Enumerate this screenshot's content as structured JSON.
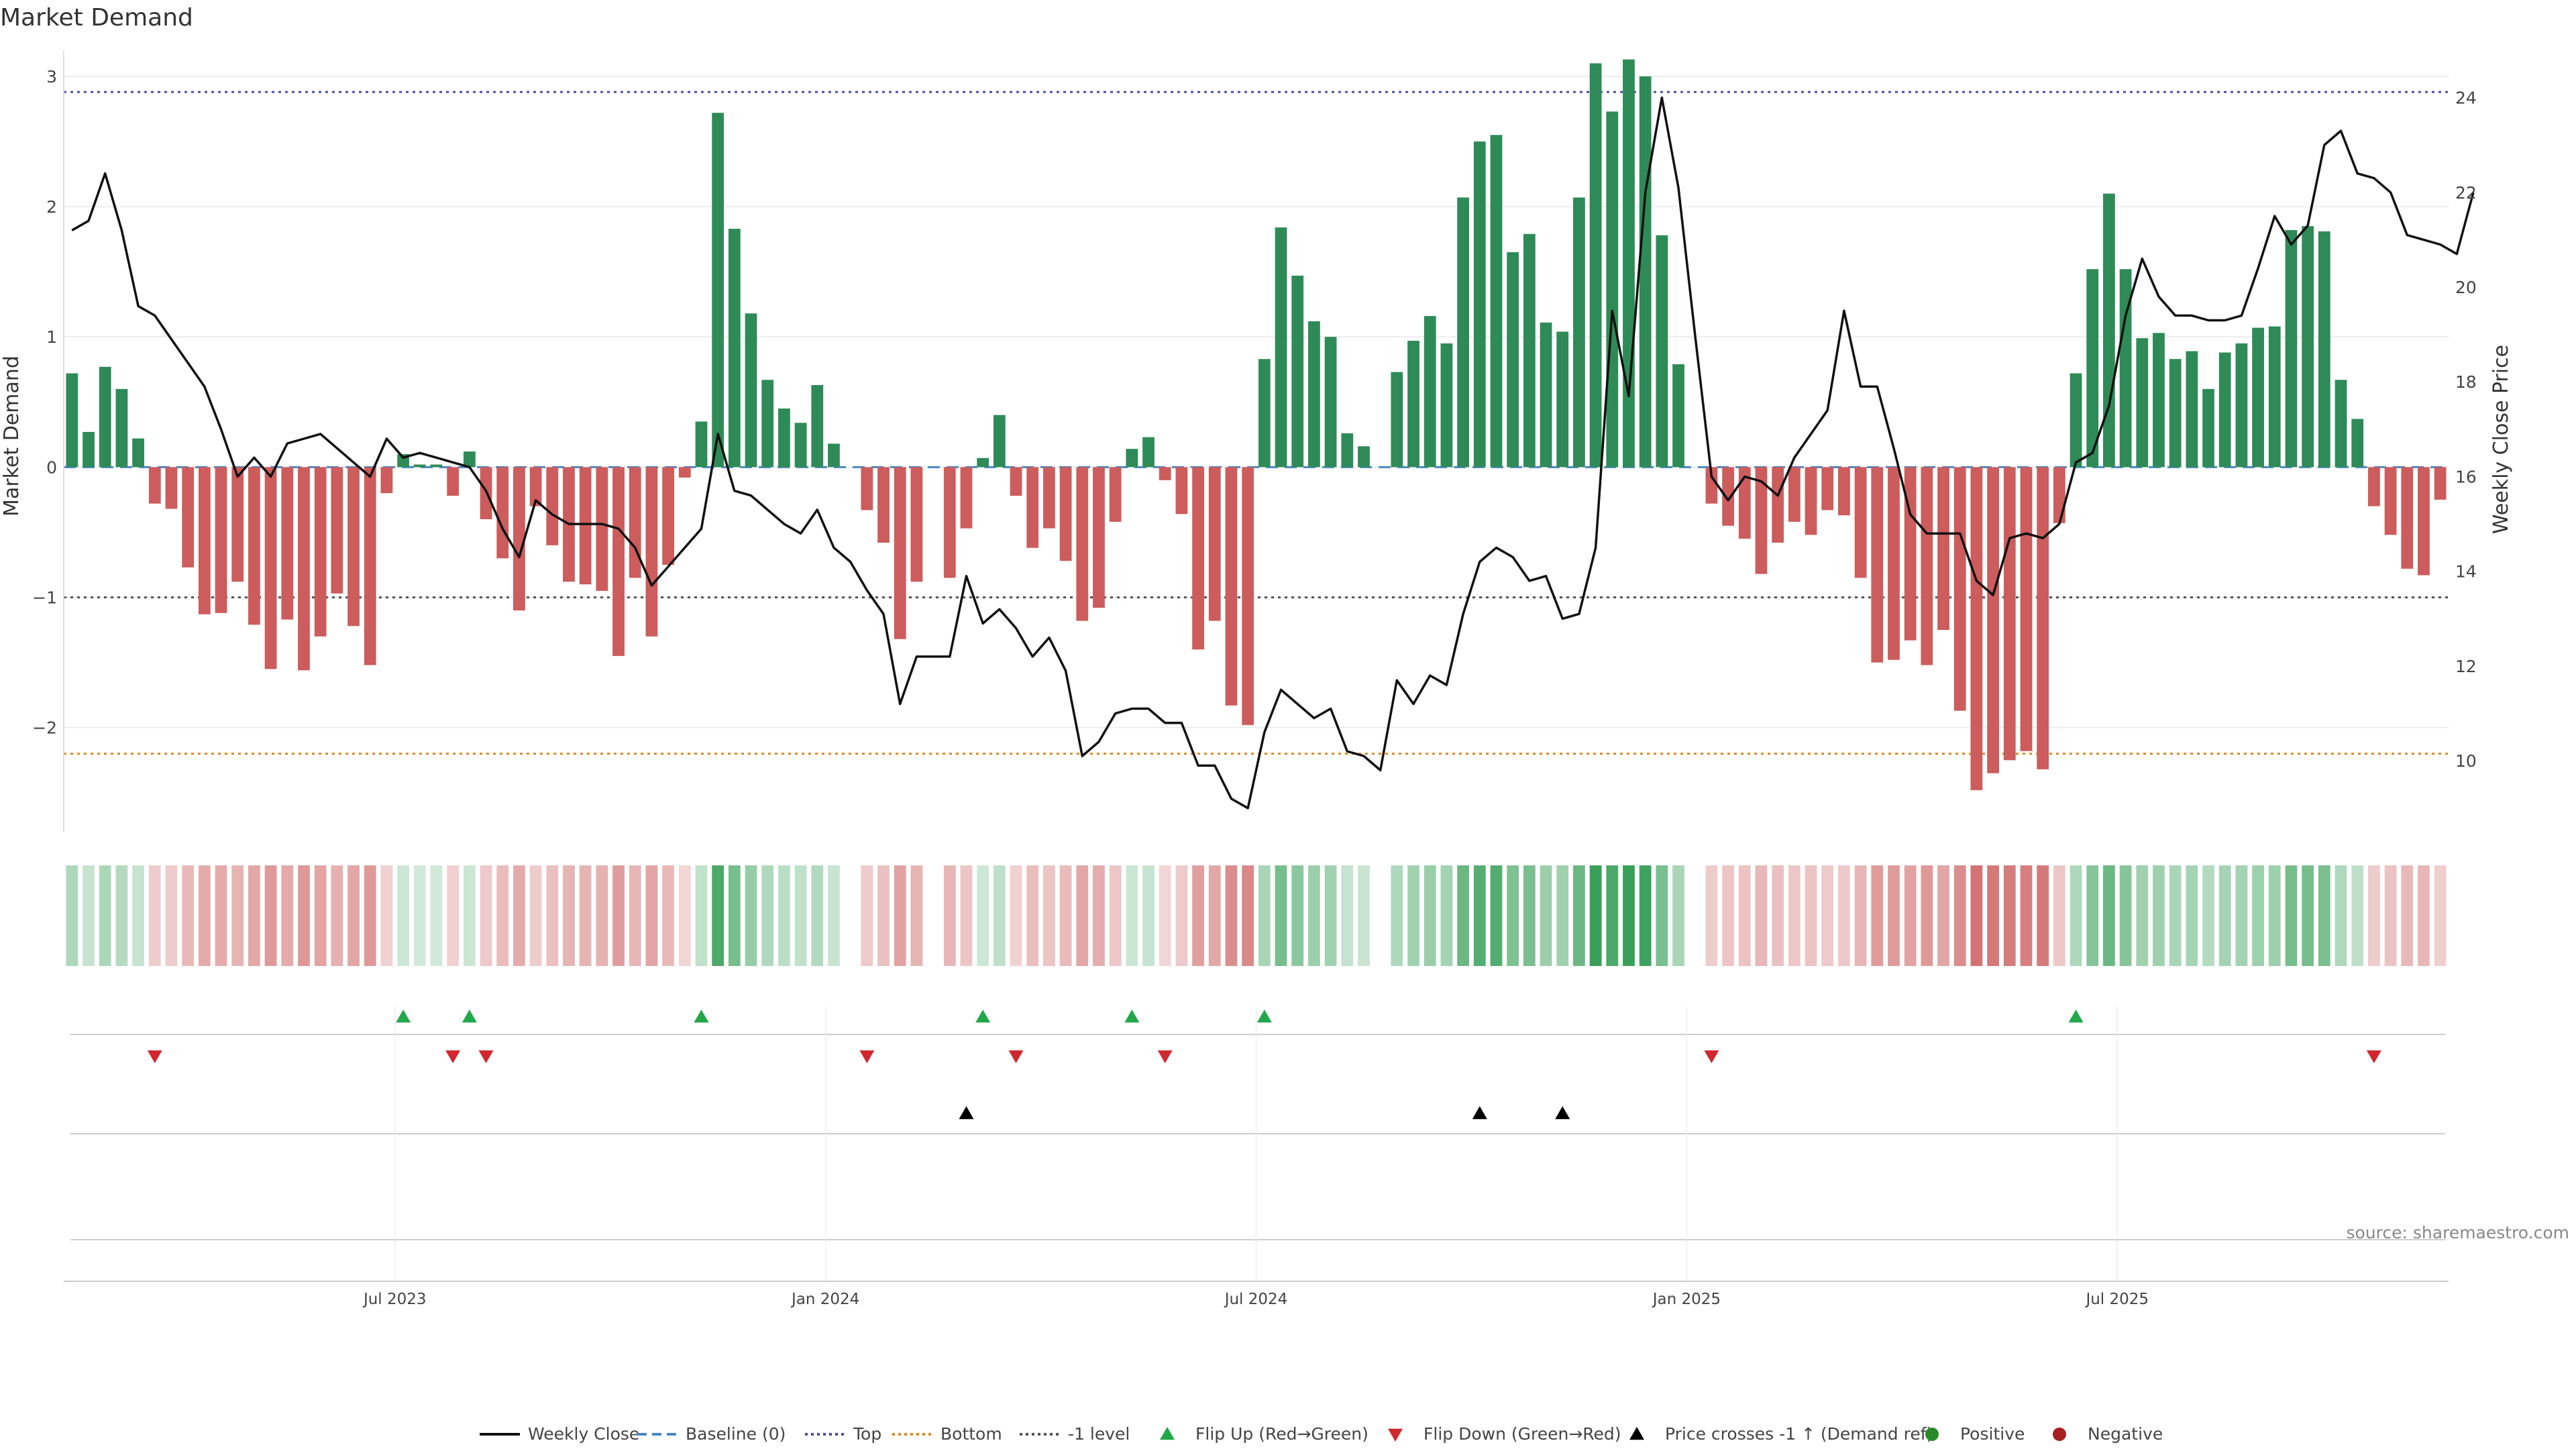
{
  "chart_data": {
    "type": "bar",
    "title": "Market Demand",
    "ylabel_left": "Market Demand",
    "ylabel_right": "Weekly Close Price",
    "source": "source: sharemaestro.com",
    "y_left": {
      "min": -2.8,
      "max": 3.2,
      "ticks": [
        3,
        2,
        1,
        0,
        -1,
        -2
      ],
      "tick_labels": [
        "3",
        "2",
        "1",
        "0",
        "−1",
        "−2"
      ]
    },
    "y_right": {
      "min": 8.5,
      "max": 25.0,
      "ticks": [
        24,
        22,
        20,
        18,
        16,
        14,
        12,
        10
      ],
      "tick_labels": [
        "24",
        "22",
        "20",
        "18",
        "16",
        "14",
        "12",
        "10"
      ]
    },
    "x_ticks": [
      {
        "label": "Jul 2023",
        "week": 20
      },
      {
        "label": "Jan 2024",
        "week": 46
      },
      {
        "label": "Jul 2024",
        "week": 72
      },
      {
        "label": "Jan 2025",
        "week": 98
      },
      {
        "label": "Jul 2025",
        "week": 124
      }
    ],
    "reference_lines": [
      {
        "name": "Top",
        "value": 2.88,
        "color": "#4b4f9e",
        "dash": "dotted"
      },
      {
        "name": "Bottom",
        "value": -2.2,
        "color": "#e08a1e",
        "dash": "dotted"
      },
      {
        "name": "-1 level",
        "value": -1.0,
        "color": "#555555",
        "dash": "dotted"
      },
      {
        "name": "Baseline (0)",
        "value": 0,
        "color": "#4a87c4",
        "dash": "dashed"
      }
    ],
    "demand": [
      0.72,
      0.27,
      0.77,
      0.6,
      0.22,
      -0.28,
      -0.32,
      -0.77,
      -1.13,
      -1.12,
      -0.88,
      -1.21,
      -1.55,
      -1.17,
      -1.56,
      -1.3,
      -0.97,
      -1.22,
      -1.52,
      -0.2,
      0.1,
      0.02,
      0.02,
      -0.22,
      0.12,
      -0.4,
      -0.7,
      -1.1,
      -0.3,
      -0.6,
      -0.88,
      -0.9,
      -0.95,
      -1.45,
      -0.85,
      -1.3,
      -0.75,
      -0.08,
      0.35,
      2.72,
      1.83,
      1.18,
      0.67,
      0.45,
      0.34,
      0.63,
      0.18,
      0.0,
      -0.33,
      -0.58,
      -1.32,
      -0.88,
      0.0,
      -0.85,
      -0.47,
      0.07,
      0.4,
      -0.22,
      -0.62,
      -0.47,
      -0.72,
      -1.18,
      -1.08,
      -0.42,
      0.14,
      0.23,
      -0.1,
      -0.36,
      -1.4,
      -1.18,
      -1.83,
      -1.98,
      0.83,
      1.84,
      1.47,
      1.12,
      1.0,
      0.26,
      0.16,
      0.0,
      0.73,
      0.97,
      1.16,
      0.95,
      2.07,
      2.5,
      2.55,
      1.65,
      1.79,
      1.11,
      1.04,
      2.07,
      3.1,
      2.73,
      3.13,
      3.0,
      1.78,
      0.79,
      0.0,
      -0.28,
      -0.45,
      -0.55,
      -0.82,
      -0.58,
      -0.42,
      -0.52,
      -0.33,
      -0.37,
      -0.85,
      -1.5,
      -1.48,
      -1.33,
      -1.52,
      -1.25,
      -1.87,
      -2.48,
      -2.35,
      -2.25,
      -2.18,
      -2.32,
      -0.43,
      0.72,
      1.52,
      2.1,
      1.52,
      0.99,
      1.03,
      0.83,
      0.89,
      0.6,
      0.88,
      0.95,
      1.07,
      1.08,
      1.82,
      1.85,
      1.81,
      0.67,
      0.37,
      -0.3,
      -0.52,
      -0.78,
      -0.83,
      -0.25
    ],
    "price": [
      21.2,
      21.4,
      22.4,
      21.2,
      19.6,
      19.4,
      18.9,
      18.4,
      17.9,
      17.0,
      16.0,
      16.4,
      16.0,
      16.7,
      16.8,
      16.9,
      16.6,
      16.3,
      16.0,
      16.8,
      16.4,
      16.5,
      16.4,
      16.3,
      16.2,
      15.7,
      14.9,
      14.3,
      15.5,
      15.2,
      15.0,
      15.0,
      15.0,
      14.9,
      14.5,
      13.7,
      14.1,
      14.5,
      14.9,
      16.9,
      15.7,
      15.6,
      15.3,
      15.0,
      14.8,
      15.3,
      14.5,
      14.2,
      13.6,
      13.1,
      11.2,
      12.2,
      12.2,
      12.2,
      13.9,
      12.9,
      13.2,
      12.8,
      12.2,
      12.6,
      11.9,
      10.1,
      10.4,
      11.0,
      11.1,
      11.1,
      10.8,
      10.8,
      9.9,
      9.9,
      9.2,
      9.0,
      10.6,
      11.5,
      11.2,
      10.9,
      11.1,
      10.2,
      10.1,
      9.8,
      11.7,
      11.2,
      11.8,
      11.6,
      13.1,
      14.2,
      14.5,
      14.3,
      13.8,
      13.9,
      13.0,
      13.1,
      14.5,
      19.5,
      17.7,
      22.0,
      24.0,
      22.1,
      19.0,
      16.0,
      15.5,
      16.0,
      15.9,
      15.6,
      16.4,
      16.9,
      17.4,
      19.5,
      17.9,
      17.9,
      16.6,
      15.2,
      14.8,
      14.8,
      14.8,
      13.8,
      13.5,
      14.7,
      14.8,
      14.7,
      15.0,
      16.3,
      16.5,
      17.5,
      19.4,
      20.6,
      19.8,
      19.4,
      19.4,
      19.3,
      19.3,
      19.4,
      20.4,
      21.5,
      20.9,
      21.3,
      23.0,
      23.3,
      22.4,
      22.3,
      22.0,
      21.1,
      21.0,
      20.9,
      20.7,
      22.0
    ],
    "flip_up_weeks": [
      20,
      24,
      38,
      55,
      64,
      72,
      121
    ],
    "flip_down_weeks": [
      5,
      23,
      25,
      48,
      57,
      66,
      99,
      139
    ],
    "price_cross_weeks": [
      54,
      85,
      90
    ],
    "legend": [
      {
        "label": "Weekly Close",
        "symbol": "line",
        "color": "#111111"
      },
      {
        "label": "Baseline (0)",
        "symbol": "dashed",
        "color": "#4a87c4"
      },
      {
        "label": "Top",
        "symbol": "dotted",
        "color": "#4b4f9e"
      },
      {
        "label": "Bottom",
        "symbol": "dotted",
        "color": "#e08a1e"
      },
      {
        "label": "-1 level",
        "symbol": "dotted",
        "color": "#555555"
      },
      {
        "label": "Flip Up (Red→Green)",
        "symbol": "triangle-up",
        "color": "#22a84a"
      },
      {
        "label": "Flip Down (Green→Red)",
        "symbol": "triangle-down",
        "color": "#d0282e"
      },
      {
        "label": "Price crosses -1 ↑ (Demand ref)",
        "symbol": "triangle-up",
        "color": "#000000"
      },
      {
        "label": "Positive",
        "symbol": "circle",
        "color": "#2a8a2a"
      },
      {
        "label": "Negative",
        "symbol": "circle",
        "color": "#a81f1f"
      }
    ],
    "colors": {
      "positive_bar": "#2e8b57",
      "negative_bar": "#cd5c5c",
      "price_line": "#111111",
      "grid": "#e8e8e8"
    }
  }
}
